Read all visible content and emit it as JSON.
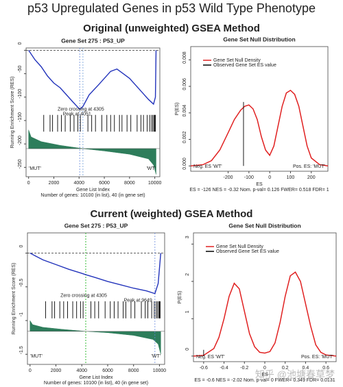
{
  "title": "p53 Upregulated Genes in p53 Wild Type Phenotype",
  "sections": [
    "Original (unweighted) GSEA Method",
    "Current (weighted) GSEA Method"
  ],
  "watermark": "知乎 @池塘春草梦",
  "chart_data": [
    {
      "type": "gsea",
      "title": "Gene Set 275 : P53_UP",
      "y_label": "Running Enrichment Score (RES)",
      "x_label": "Gene List Index",
      "footer": "Number of genes: 10100 (in list), 40 (in gene set)",
      "left_label": "'MUT'",
      "right_label": "'WT'",
      "zero_label": "Zero crossing at 4305",
      "peak_label": "Peak at 4051",
      "zero_crossing": 4305,
      "peak": 4051,
      "zero_color": "#8ab0e0",
      "color": "#2233bb",
      "fill": "#2e7d5b",
      "xlim": [
        -200,
        10400
      ],
      "ylim": [
        -270,
        5
      ],
      "xticks": [
        0,
        2000,
        4000,
        6000,
        8000,
        10000
      ],
      "yticks": [
        0,
        -50,
        -100,
        -150,
        -200,
        -250
      ],
      "x": [
        0,
        500,
        1000,
        1500,
        2000,
        2500,
        3000,
        3500,
        4051,
        4305,
        4800,
        5500,
        6000,
        6500,
        7000,
        7500,
        8000,
        8500,
        9000,
        9500,
        9900,
        10050,
        10100
      ],
      "values": [
        0,
        -20,
        -35,
        -55,
        -70,
        -80,
        -95,
        -110,
        -126,
        -120,
        -95,
        -75,
        -60,
        -45,
        -40,
        -50,
        -60,
        -75,
        -90,
        -105,
        -115,
        -100,
        0
      ],
      "hits": [
        1200,
        1700,
        1900,
        2300,
        2600,
        2900,
        3300,
        3600,
        3900,
        4100,
        4700,
        5000,
        5300,
        5800,
        6200,
        6500,
        6800,
        7200,
        7400,
        7800,
        8100,
        8600,
        8900,
        9100,
        9400,
        9600,
        9750,
        9850,
        9950,
        10000,
        10050
      ],
      "rank": {
        "x": [
          0,
          200,
          1000,
          2500,
          4305,
          6000,
          8000,
          9500,
          9900,
          10100
        ],
        "values": [
          -170,
          -185,
          -195,
          -203,
          -210,
          -215,
          -222,
          -232,
          -245,
          -265
        ]
      }
    },
    {
      "type": "density",
      "title": "Gene Set Null Distribution",
      "y_label": "P(ES)",
      "x_label": "ES",
      "footer": "ES = -126  NES = -0.32  Nom. p-val= 0.126  FWER= 0.518  FDR= 1",
      "left_label": "Neg. ES 'WT'",
      "right_label": "Pos. ES: 'MUT'",
      "xlim": [
        -380,
        280
      ],
      "ylim": [
        -0.0004,
        0.009
      ],
      "xticks": [
        -200,
        -100,
        0,
        100,
        200
      ],
      "yticks": [
        {
          "value": 0,
          "label": "0.000"
        },
        {
          "value": 0.002,
          "label": "0.002"
        },
        {
          "value": 0.004,
          "label": "0.004"
        },
        {
          "value": 0.006,
          "label": "0.006"
        },
        {
          "value": 0.008,
          "label": "0.008"
        }
      ],
      "x": [
        -380,
        -320,
        -280,
        -240,
        -200,
        -170,
        -140,
        -120,
        -100,
        -80,
        -60,
        -40,
        -20,
        0,
        20,
        40,
        60,
        80,
        100,
        120,
        140,
        160,
        180,
        200,
        240,
        280
      ],
      "series": [
        {
          "name": "Gene Set Null Density",
          "color": "#e02020",
          "values": [
            0,
            0.0001,
            0.0004,
            0.0012,
            0.0025,
            0.0035,
            0.0042,
            0.0045,
            0.0046,
            0.0043,
            0.0035,
            0.0022,
            0.0012,
            0.0008,
            0.0015,
            0.003,
            0.0045,
            0.0055,
            0.0057,
            0.0054,
            0.0045,
            0.003,
            0.0015,
            0.0006,
            0.0001,
            0
          ]
        }
      ],
      "observed": {
        "name": "Observed Gene Set ES value",
        "color": "#000000",
        "value": -126
      }
    },
    {
      "type": "gsea",
      "title": "Gene Set 275 : P53_UP",
      "y_label": "Running Enrichment Score (RES)",
      "x_label": "Gene List Index",
      "footer": "Number of genes: 10100 (in list), 40 (in gene set)",
      "left_label": "'MUT'",
      "right_label": "'WT'",
      "zero_label": "Zero crossing at 4305",
      "peak_label": "Peak at 9649",
      "zero_crossing": 4305,
      "peak": 9649,
      "zero_color": "#33bb33",
      "color": "#2233bb",
      "fill": "#2e7d5b",
      "xlim": [
        -200,
        10400
      ],
      "ylim": [
        -1.65,
        0.3
      ],
      "xticks": [
        0,
        2000,
        4000,
        6000,
        8000,
        10000
      ],
      "yticks": [
        0,
        -0.5,
        -1,
        -1.5
      ],
      "x": [
        0,
        500,
        1000,
        2000,
        3000,
        4000,
        4305,
        5000,
        6000,
        7000,
        8000,
        9000,
        9649,
        9900,
        10100
      ],
      "values": [
        0,
        -0.05,
        -0.1,
        -0.17,
        -0.24,
        -0.3,
        -0.32,
        -0.36,
        -0.42,
        -0.47,
        -0.52,
        -0.56,
        -0.6,
        -0.45,
        0
      ],
      "hits": [
        1200,
        1700,
        1900,
        2300,
        2600,
        2900,
        3300,
        3600,
        3900,
        4100,
        4700,
        5000,
        5300,
        5800,
        6200,
        6500,
        6800,
        7200,
        7400,
        7800,
        8100,
        8600,
        8900,
        9100,
        9400,
        9600,
        9750,
        9850,
        9950,
        10000,
        10050
      ],
      "rank": {
        "x": [
          0,
          200,
          1000,
          2500,
          4305,
          6000,
          8000,
          9500,
          9900,
          10100
        ],
        "values": [
          -1.0,
          -1.06,
          -1.1,
          -1.13,
          -1.16,
          -1.18,
          -1.22,
          -1.28,
          -1.35,
          -1.5
        ]
      }
    },
    {
      "type": "density",
      "title": "Gene Set Null Distribution",
      "y_label": "P(ES)",
      "x_label": "ES",
      "footer": "ES = -0.6  NES = -2.02  Nom. p-val= 0  FWER= 0.349  FDR= 0.0131",
      "left_label": "Neg. ES 'WT'",
      "right_label": "Pos. ES: 'MUT'",
      "xlim": [
        -0.7,
        0.7
      ],
      "ylim": [
        -0.15,
        3.3
      ],
      "xticks": [
        -0.6,
        -0.4,
        -0.2,
        0,
        0.2,
        0.4,
        0.6
      ],
      "yticks": [
        0,
        1,
        2,
        3
      ],
      "x": [
        -0.7,
        -0.6,
        -0.5,
        -0.45,
        -0.4,
        -0.35,
        -0.3,
        -0.25,
        -0.2,
        -0.15,
        -0.1,
        -0.05,
        0,
        0.05,
        0.1,
        0.15,
        0.2,
        0.25,
        0.3,
        0.35,
        0.4,
        0.45,
        0.5,
        0.55,
        0.6,
        0.7
      ],
      "series": [
        {
          "name": "Gene Set Null Density",
          "color": "#e02020",
          "values": [
            0,
            0.02,
            0.2,
            0.5,
            1.0,
            1.6,
            1.95,
            1.8,
            1.2,
            0.6,
            0.25,
            0.1,
            0.08,
            0.12,
            0.35,
            0.9,
            1.6,
            2.15,
            2.25,
            2.0,
            1.4,
            0.8,
            0.3,
            0.1,
            0.03,
            0
          ]
        }
      ],
      "observed": {
        "name": "Observed Gene Set ES value",
        "color": "#000000",
        "value": -0.6
      }
    }
  ]
}
